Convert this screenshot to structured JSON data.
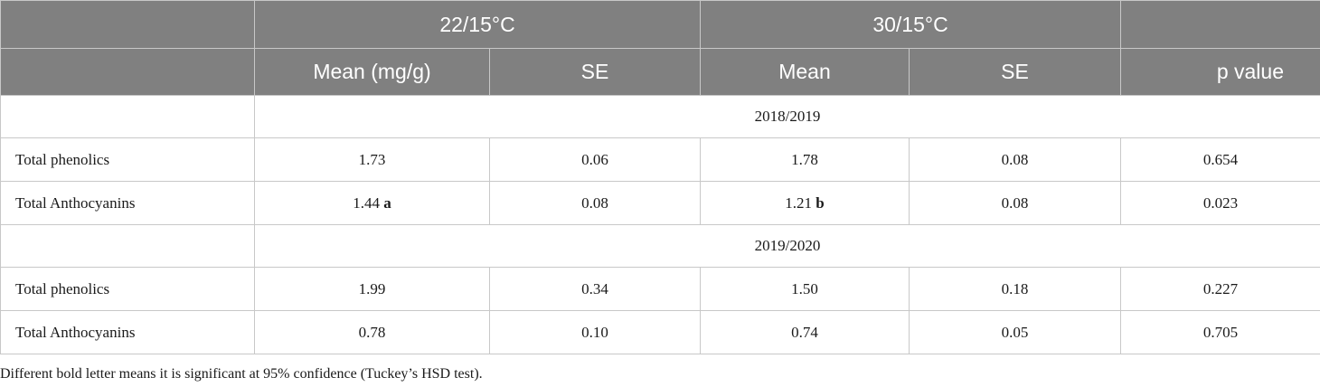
{
  "table": {
    "header": {
      "group_22": "22/15°C",
      "group_30": "30/15°C",
      "mean_mg": "Mean (mg/g)",
      "se_1": "SE",
      "mean": "Mean",
      "se_2": "SE",
      "p_value": "p value"
    },
    "sections": [
      {
        "season": "2018/2019",
        "rows": [
          {
            "label": "Total phenolics",
            "mean_22": "1.73",
            "sig_22": "",
            "se_22": "0.06",
            "mean_30": "1.78",
            "sig_30": "",
            "se_30": "0.08",
            "p": "0.654"
          },
          {
            "label": "Total Anthocyanins",
            "mean_22": "1.44",
            "sig_22": "a",
            "se_22": "0.08",
            "mean_30": "1.21",
            "sig_30": "b",
            "se_30": "0.08",
            "p": "0.023"
          }
        ]
      },
      {
        "season": "2019/2020",
        "rows": [
          {
            "label": "Total phenolics",
            "mean_22": "1.99",
            "sig_22": "",
            "se_22": "0.34",
            "mean_30": "1.50",
            "sig_30": "",
            "se_30": "0.18",
            "p": "0.227"
          },
          {
            "label": "Total Anthocyanins",
            "mean_22": "0.78",
            "sig_22": "",
            "se_22": "0.10",
            "mean_30": "0.74",
            "sig_30": "",
            "se_30": "0.05",
            "p": "0.705"
          }
        ]
      }
    ]
  },
  "footnote": "Different bold letter means it is significant at 95% confidence (Tuckey’s HSD test)."
}
